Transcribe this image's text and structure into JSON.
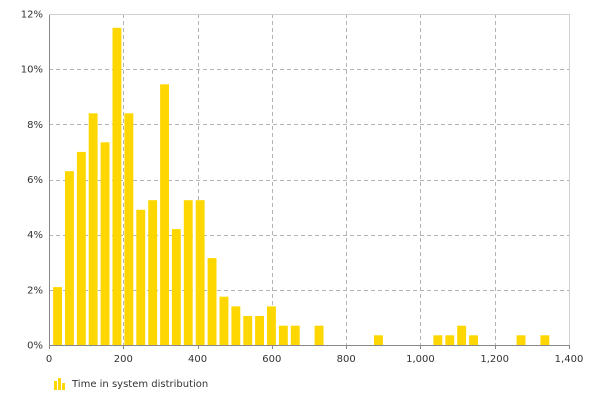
{
  "chart_data": {
    "type": "bar",
    "title": "",
    "xlabel": "",
    "ylabel": "",
    "xlim": [
      0,
      1400
    ],
    "ylim": [
      0,
      12
    ],
    "x_ticks": [
      0,
      200,
      400,
      600,
      800,
      1000,
      1200,
      1400
    ],
    "x_tick_labels": [
      "0",
      "200",
      "400",
      "600",
      "800",
      "1,000",
      "1,200",
      "1,400"
    ],
    "y_ticks": [
      0,
      2,
      4,
      6,
      8,
      10,
      12
    ],
    "y_tick_labels": [
      "0%",
      "2%",
      "4%",
      "6%",
      "8%",
      "10%",
      "12%"
    ],
    "grid": true,
    "legend_position": "bottom-left",
    "bin_width": 32,
    "series": [
      {
        "name": "Time in system distribution",
        "color": "#FFD700",
        "x": [
          23,
          55,
          87,
          119,
          151,
          183,
          215,
          247,
          279,
          311,
          343,
          375,
          407,
          439,
          471,
          503,
          535,
          567,
          599,
          631,
          663,
          727,
          887,
          1047,
          1079,
          1111,
          1143,
          1271,
          1335
        ],
        "values": [
          2.1,
          6.3,
          7.0,
          8.4,
          7.35,
          11.5,
          8.4,
          4.9,
          5.25,
          9.45,
          4.2,
          5.25,
          5.25,
          3.15,
          1.75,
          1.4,
          1.05,
          1.05,
          1.4,
          0.7,
          0.7,
          0.7,
          0.35,
          0.35,
          0.35,
          0.7,
          0.35,
          0.35,
          0.35
        ]
      }
    ]
  }
}
